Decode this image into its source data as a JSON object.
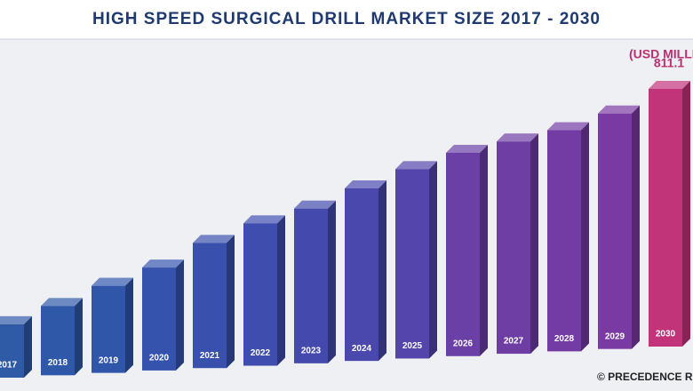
{
  "chart_data": {
    "type": "bar3d",
    "title": "HIGH SPEED SURGICAL DRILL MARKET SIZE 2017 - 2030",
    "unit_label": "(USD MILLIO",
    "source": "© PRECEDENCE RES",
    "categories": [
      "2017",
      "2018",
      "2019",
      "2020",
      "2021",
      "2022",
      "2023",
      "2024",
      "2025",
      "2026",
      "2027",
      "2028",
      "2029",
      "2030"
    ],
    "values": [
      168,
      218,
      274,
      324,
      394,
      448,
      487,
      543,
      596,
      640,
      668,
      696,
      741,
      811.1
    ],
    "value_labels": [
      null,
      null,
      null,
      null,
      null,
      null,
      null,
      null,
      null,
      null,
      null,
      null,
      null,
      "811.1"
    ],
    "colors": [
      "#2f5aa6",
      "#2f58a8",
      "#3056aa",
      "#3553ac",
      "#3a50ad",
      "#3e4dae",
      "#444aad",
      "#4a47ad",
      "#5345ab",
      "#6a3fa6",
      "#6f3ea5",
      "#733ca4",
      "#7a3aa3",
      "#c2347a"
    ],
    "title_color": "#1f3a6e"
  }
}
